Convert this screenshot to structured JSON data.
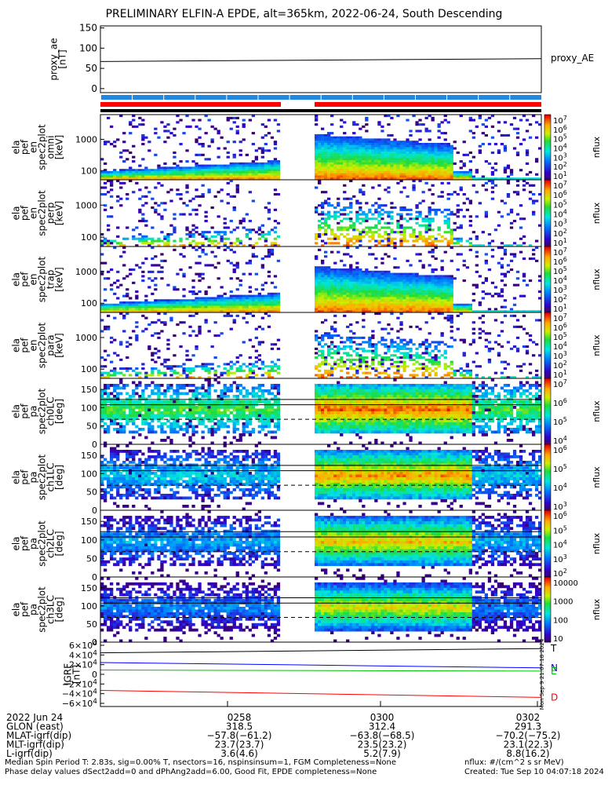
{
  "title": "PRELIMINARY ELFIN-A EPDE, alt=365km, 2022-06-24, South Descending",
  "chart_data": {
    "type": "heatmap",
    "panels": [
      {
        "ylabel": [
          "proxy_ae",
          "[nT]"
        ],
        "kind": "line",
        "yticks": [
          "150",
          "100",
          "50",
          "0"
        ],
        "ylim": [
          -10,
          155
        ],
        "series": [
          {
            "name": "proxy_AE",
            "values": [
              [
                0,
                67
              ],
              [
                1,
                74
              ]
            ]
          }
        ]
      },
      {
        "ylabel": [
          "ela",
          "pef",
          "en",
          "spec2plot",
          "omni",
          "[keV]"
        ],
        "kind": "energy",
        "yticks": [
          "1000",
          "100"
        ],
        "cbticks": [
          "10^7",
          "10^6",
          "10^5",
          "10^4",
          "10^3",
          "10^2",
          "10^1"
        ],
        "cblabel": "nflux",
        "bg": true
      },
      {
        "ylabel": [
          "ela",
          "pef",
          "en",
          "spec2plot",
          "perp",
          "[keV]"
        ],
        "kind": "energy",
        "yticks": [
          "1000",
          "100"
        ],
        "cbticks": [
          "10^7",
          "10^6",
          "10^5",
          "10^4",
          "10^3",
          "10^2",
          "10^1"
        ],
        "cblabel": "nflux",
        "bg": false
      },
      {
        "ylabel": [
          "ela",
          "pef",
          "en",
          "spec2plot",
          "trap",
          "[keV]"
        ],
        "kind": "energy",
        "yticks": [
          "1000",
          "100"
        ],
        "cbticks": [
          "10^7",
          "10^6",
          "10^5",
          "10^4",
          "10^3",
          "10^2",
          "10^1"
        ],
        "cblabel": "nflux",
        "bg": true
      },
      {
        "ylabel": [
          "ela",
          "pef",
          "en",
          "spec2plot",
          "para",
          "[keV]"
        ],
        "kind": "energy",
        "yticks": [
          "1000",
          "100"
        ],
        "cbticks": [
          "10^7",
          "10^6",
          "10^5",
          "10^4",
          "10^3",
          "10^2",
          "10^1"
        ],
        "cblabel": "nflux",
        "bg": false
      },
      {
        "ylabel": [
          "ela",
          "pef",
          "pa",
          "spec2plot",
          "ch0LC",
          "[deg]"
        ],
        "kind": "pa",
        "yticks": [
          "150",
          "100",
          "50",
          "0"
        ],
        "cbticks": [
          "10^7",
          "10^6",
          "10^5",
          "10^4"
        ],
        "cblabel": "nflux",
        "ch": 0
      },
      {
        "ylabel": [
          "ela",
          "pef",
          "pa",
          "spec2plot",
          "ch1LC",
          "[deg]"
        ],
        "kind": "pa",
        "yticks": [
          "150",
          "100",
          "50",
          "0"
        ],
        "cbticks": [
          "10^6",
          "10^5",
          "10^4",
          "10^3"
        ],
        "cblabel": "nflux",
        "ch": 1
      },
      {
        "ylabel": [
          "ela",
          "pef",
          "pa",
          "spec2plot",
          "ch2LC",
          "[deg]"
        ],
        "kind": "pa",
        "yticks": [
          "150",
          "100",
          "50",
          "0"
        ],
        "cbticks": [
          "10^6",
          "10^5",
          "10^4",
          "10^3",
          "10^2"
        ],
        "cblabel": "nflux",
        "ch": 2
      },
      {
        "ylabel": [
          "ela",
          "pef",
          "pa",
          "spec2plot",
          "ch3LC",
          "[deg]"
        ],
        "kind": "pa",
        "yticks": [
          "150",
          "100",
          "50",
          "0"
        ],
        "cbticks": [
          "10000",
          "1000",
          "100",
          "10"
        ],
        "cblabel": "nflux",
        "ch": 3
      },
      {
        "ylabel": [
          "IGRF",
          "[nT]"
        ],
        "kind": "igrf",
        "yticks": [
          "6×10^4",
          "4×10^4",
          "2×10^4",
          "0",
          "−2×10^4",
          "−4×10^4",
          "−6×10^4"
        ],
        "ylim": [
          -60000,
          60000
        ],
        "series": [
          {
            "name": "T",
            "color": "#000000",
            "values": [
              [
                0,
                40000
              ],
              [
                1,
                48000
              ]
            ]
          },
          {
            "name": "N",
            "color": "#0000ff",
            "values": [
              [
                0,
                22000
              ],
              [
                1,
                12000
              ]
            ]
          },
          {
            "name": "E",
            "color": "#00c000",
            "values": [
              [
                0,
                8000
              ],
              [
                1,
                6000
              ]
            ]
          },
          {
            "name": "D",
            "color": "#ff0000",
            "values": [
              [
                0,
                -30000
              ],
              [
                1,
                -43000
              ]
            ]
          }
        ]
      }
    ],
    "legend_labels": [
      "proxy_AE",
      "T",
      "N",
      "D"
    ],
    "xaxis": {
      "ticks": [
        "0258",
        "0300",
        "0302"
      ],
      "rows": [
        {
          "label": "2022 Jun 24",
          "values": [
            "0258",
            "0300",
            "0302"
          ]
        },
        {
          "label": "GLON (east)",
          "values": [
            "318.5",
            "312.4",
            "291.3"
          ]
        },
        {
          "label": "MLAT-igrf(dip)",
          "values": [
            "−57.8(−61.2)",
            "−63.8(−68.5)",
            "−70.2(−75.2)"
          ]
        },
        {
          "label": "MLT-igrf(dip)",
          "values": [
            "23.7(23.7)",
            "23.5(23.2)",
            "23.1(22.3)"
          ]
        },
        {
          "label": "L-igrf(dip)",
          "values": [
            "3.6(4.6)",
            "5.2(7.9)",
            "8.8(16.2)"
          ]
        }
      ]
    },
    "side_stamp": "Mon Sep  9 21:07:18 2024"
  },
  "footer": {
    "left1": "Median Spin Period T: 2.83s, sig=0.00% T, nsectors=16, nspinsinsum=1, FGM Completeness=None",
    "left2": "Phase delay values dSect2add=0 and dPhAng2add=6.00, Good Fit, EPDE completeness=None",
    "right1": "nflux: #/(cm^2 s sr MeV)",
    "right2": "Created: Tue Sep 10 04:07:18 2024"
  },
  "colors": {
    "red_bar": "#ff0000",
    "blue_bar": "#1e88e5"
  }
}
